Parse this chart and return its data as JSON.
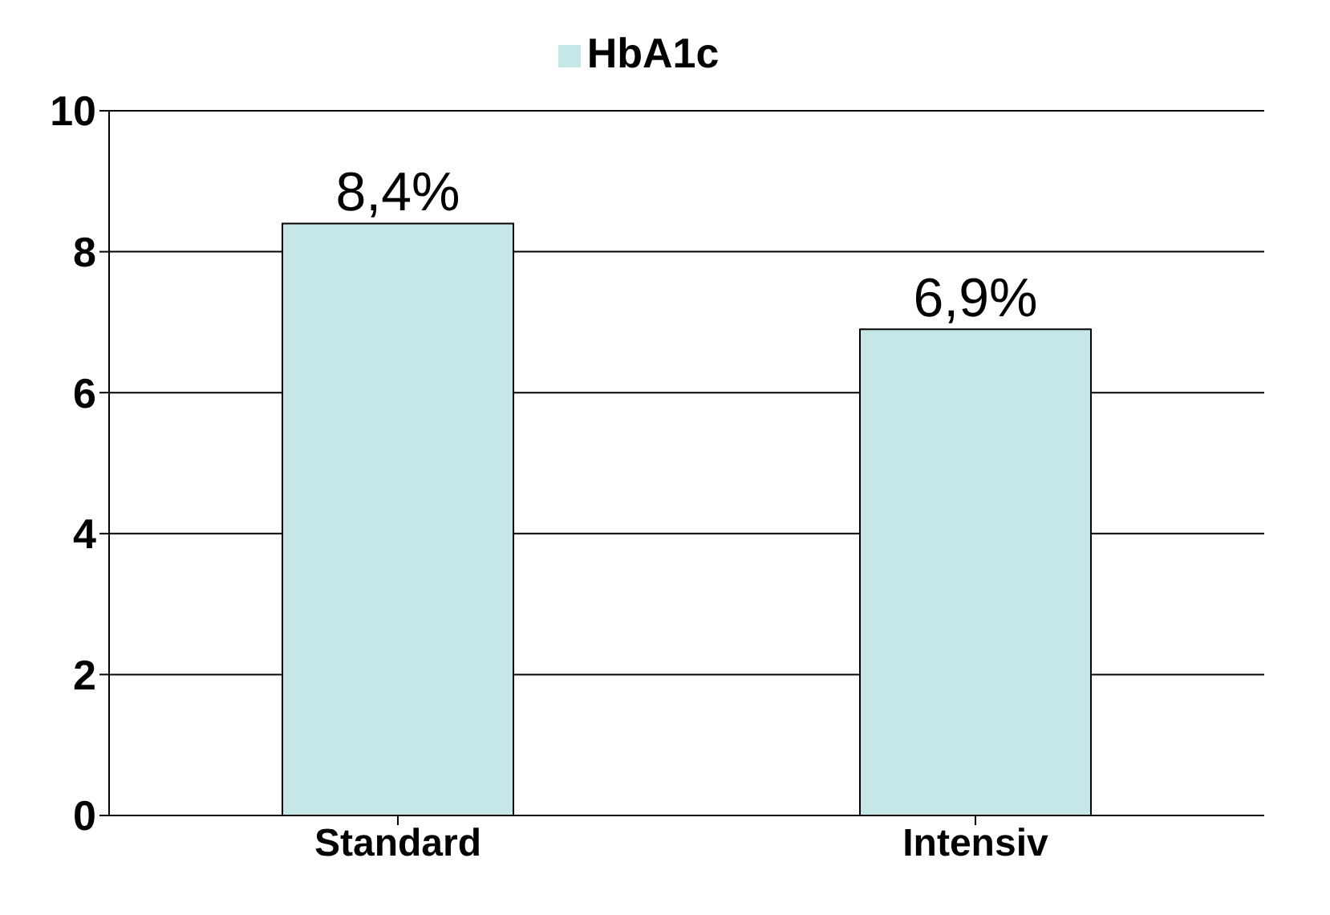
{
  "chart_data": {
    "type": "bar",
    "categories": [
      "Standard",
      "Intensiv"
    ],
    "series": [
      {
        "name": "HbA1c",
        "color": "#c6e7e8",
        "values": [
          8.4,
          6.9
        ],
        "value_labels": [
          "8,4%",
          "6,9%"
        ]
      }
    ],
    "ylim": [
      0,
      10
    ],
    "yticks": [
      0,
      2,
      4,
      6,
      8,
      10
    ],
    "grid": "y",
    "legend": "top"
  }
}
